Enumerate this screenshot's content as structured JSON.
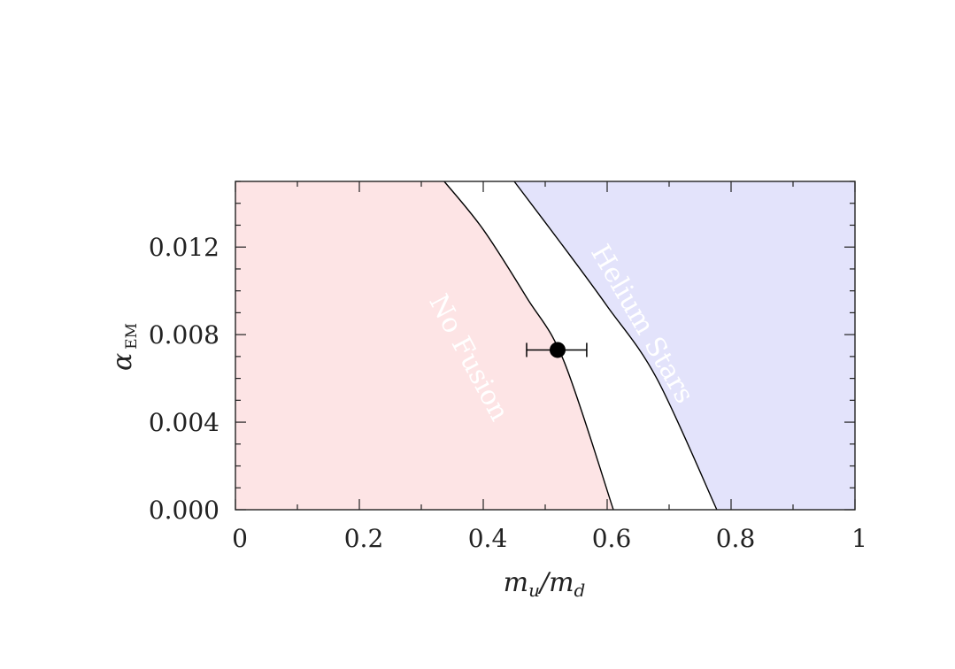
{
  "chart_data": {
    "type": "area",
    "title": "",
    "xlabel": "m_u/m_d",
    "ylabel": "α_EM",
    "xlim": [
      0,
      1
    ],
    "ylim": [
      0,
      0.015
    ],
    "x_ticks": [
      "0",
      "0.2",
      "0.4",
      "0.6",
      "0.8",
      "1"
    ],
    "x_tick_values": [
      0,
      0.2,
      0.4,
      0.6,
      0.8,
      1
    ],
    "y_ticks": [
      "0.000",
      "0.004",
      "0.008",
      "0.012"
    ],
    "y_tick_values": [
      0,
      0.004,
      0.008,
      0.012
    ],
    "grid": false,
    "regions": [
      {
        "name": "No Fusion",
        "color": "#fde4e5",
        "boundary": [
          [
            0.337,
            0.015
          ],
          [
            0.4,
            0.0128
          ],
          [
            0.47,
            0.0097
          ],
          [
            0.53,
            0.0068
          ],
          [
            0.61,
            0.0
          ]
        ]
      },
      {
        "name": "Helium Stars",
        "color": "#e3e3fb",
        "boundary": [
          [
            0.45,
            0.015
          ],
          [
            0.53,
            0.012
          ],
          [
            0.6,
            0.0093
          ],
          [
            0.68,
            0.006
          ],
          [
            0.777,
            0.0
          ]
        ]
      }
    ],
    "point": {
      "x": 0.52,
      "y": 0.0073,
      "xerr_low": 0.47,
      "xerr_high": 0.567
    },
    "line_color": "#000000"
  }
}
